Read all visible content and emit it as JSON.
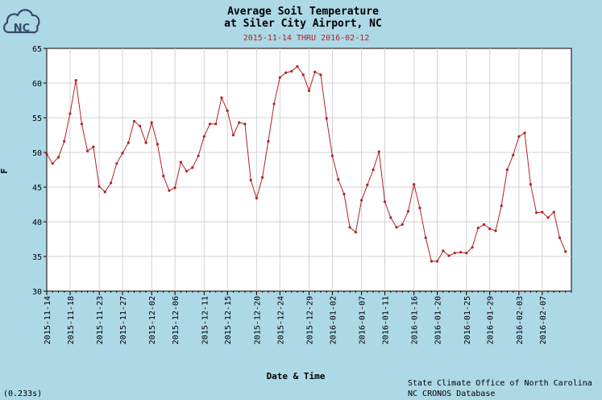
{
  "logo": {
    "text": "NC"
  },
  "footer": {
    "timing": "(0.233s)",
    "credit_line1": "State Climate Office of North Carolina",
    "credit_line2": "NC CRONOS Database"
  },
  "colors": {
    "background": "#add8e6",
    "plot_bg": "#ffffff",
    "series": "#b22222",
    "subtitle": "#b22222",
    "grid": "#d3d3d3"
  },
  "chart_data": {
    "type": "line",
    "title": "Average Soil Temperature",
    "title_line2": "at Siler City Airport, NC",
    "subtitle": "2015-11-14 THRU 2016-02-12",
    "xlabel": "Date & Time",
    "ylabel": "F",
    "ylim": [
      30,
      65
    ],
    "yticks": [
      30,
      35,
      40,
      45,
      50,
      55,
      60,
      65
    ],
    "grid": true,
    "start_date": "2015-11-14",
    "xticks": [
      {
        "day": 0,
        "label": "2015-11-14"
      },
      {
        "day": 4,
        "label": "2015-11-18"
      },
      {
        "day": 9,
        "label": "2015-11-23"
      },
      {
        "day": 13,
        "label": "2015-11-27"
      },
      {
        "day": 18,
        "label": "2015-12-02"
      },
      {
        "day": 22,
        "label": "2015-12-06"
      },
      {
        "day": 27,
        "label": "2015-12-11"
      },
      {
        "day": 31,
        "label": "2015-12-15"
      },
      {
        "day": 36,
        "label": "2015-12-20"
      },
      {
        "day": 40,
        "label": "2015-12-24"
      },
      {
        "day": 45,
        "label": "2015-12-29"
      },
      {
        "day": 49,
        "label": "2016-01-02"
      },
      {
        "day": 54,
        "label": "2016-01-07"
      },
      {
        "day": 58,
        "label": "2016-01-11"
      },
      {
        "day": 63,
        "label": "2016-01-16"
      },
      {
        "day": 67,
        "label": "2016-01-20"
      },
      {
        "day": 72,
        "label": "2016-01-25"
      },
      {
        "day": 76,
        "label": "2016-01-29"
      },
      {
        "day": 81,
        "label": "2016-02-03"
      },
      {
        "day": 85,
        "label": "2016-02-07"
      }
    ],
    "x_end_day": 90,
    "series": [
      {
        "name": "Average Soil Temperature",
        "values": [
          49.8,
          48.4,
          49.3,
          51.6,
          55.6,
          60.4,
          54.1,
          50.2,
          50.8,
          45.1,
          44.3,
          45.6,
          48.4,
          49.9,
          51.4,
          54.5,
          53.8,
          51.4,
          54.3,
          51.2,
          46.6,
          44.5,
          44.9,
          48.6,
          47.3,
          47.8,
          49.5,
          52.3,
          54.1,
          54.1,
          57.9,
          56.0,
          52.5,
          54.3,
          54.1,
          46.0,
          43.4,
          46.4,
          51.6,
          57.0,
          60.8,
          61.5,
          61.7,
          62.4,
          61.2,
          58.9,
          61.6,
          61.2,
          54.9,
          49.5,
          46.1,
          44.0,
          39.2,
          38.5,
          43.1,
          45.3,
          47.5,
          50.1,
          42.9,
          40.6,
          39.2,
          39.6,
          41.5,
          45.4,
          42.0,
          37.7,
          34.3,
          34.3,
          35.8,
          35.1,
          35.5,
          35.6,
          35.5,
          36.3,
          39.1,
          39.6,
          39.0,
          38.7,
          42.3,
          47.5,
          49.6,
          52.3,
          52.8,
          45.4,
          41.3,
          41.4,
          40.6,
          41.4,
          37.7,
          35.7
        ]
      }
    ]
  }
}
